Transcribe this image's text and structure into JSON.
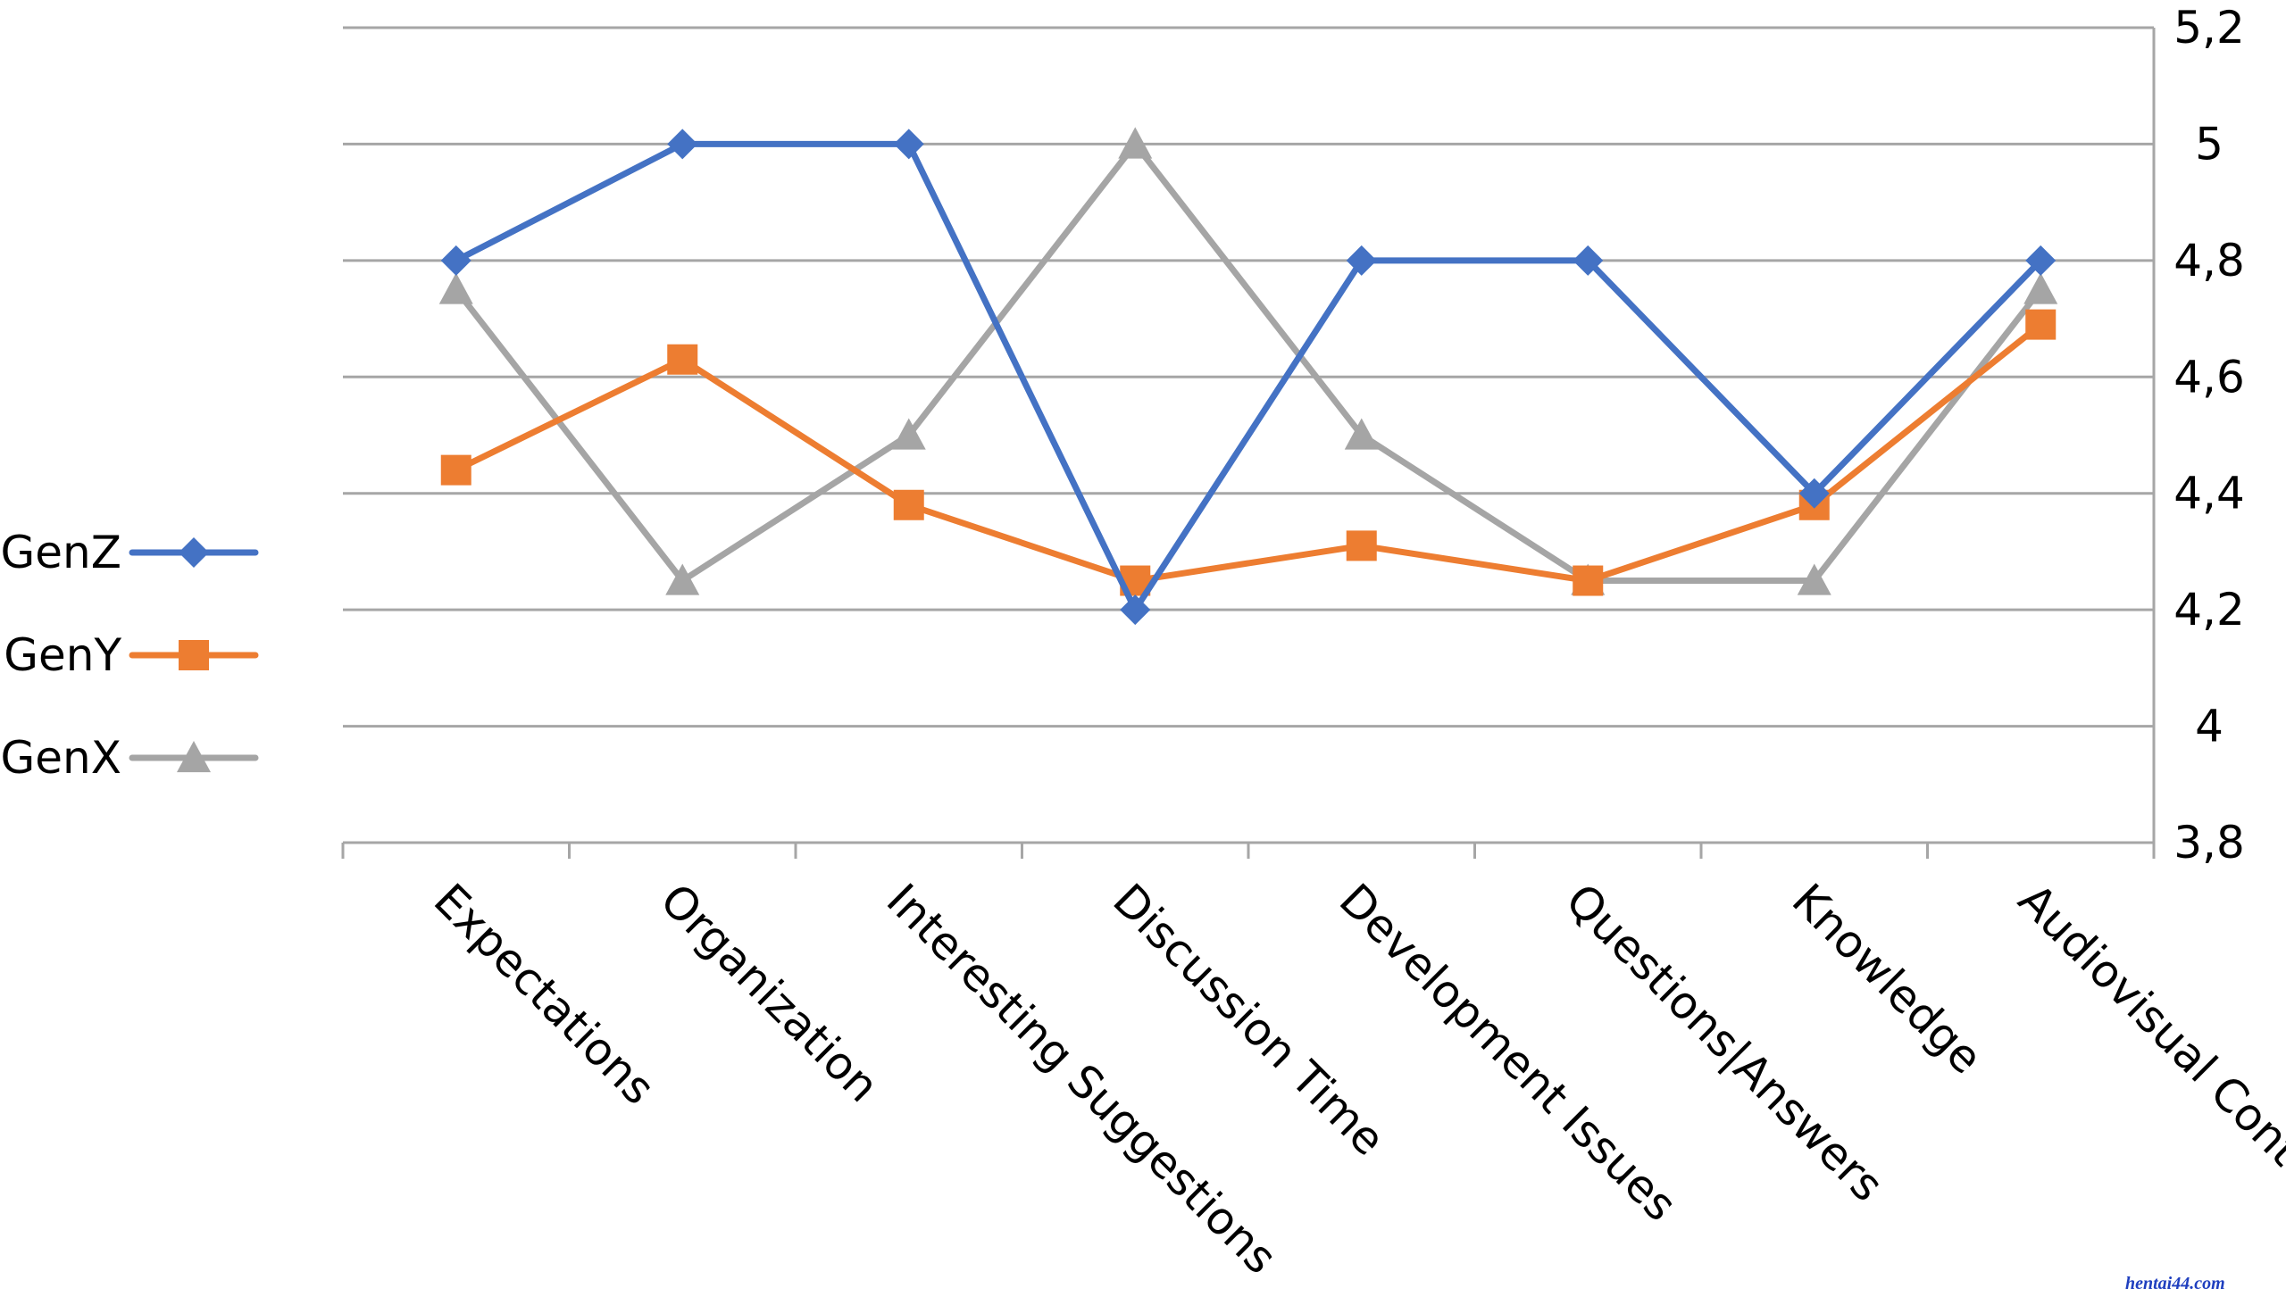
{
  "chart_data": {
    "type": "line",
    "title": "",
    "xlabel": "",
    "ylabel": "",
    "mirrored": true,
    "grid": true,
    "legend_placement": "left",
    "ylim": [
      3.8,
      5.2
    ],
    "yticks": [
      "3,8",
      "4",
      "4,2",
      "4,4",
      "4,6",
      "4,8",
      "5",
      "5,2"
    ],
    "ytick_values": [
      3.8,
      4.0,
      4.2,
      4.4,
      4.6,
      4.8,
      5.0,
      5.2
    ],
    "categories": [
      "Audiovisual Content",
      "Knowledge",
      "Questions|Answers",
      "Development Issues",
      "Discussion Time",
      "Interesting Suggestions",
      "Organization",
      "Expectations"
    ],
    "series": [
      {
        "name": "GenZ",
        "color": "#4472c4",
        "marker": "diamond",
        "values": [
          4.8,
          4.4,
          4.8,
          4.8,
          4.2,
          5.0,
          5.0,
          4.8
        ]
      },
      {
        "name": "GenY",
        "color": "#ed7d31",
        "marker": "square",
        "values": [
          4.69,
          4.38,
          4.25,
          4.31,
          4.25,
          4.38,
          4.63,
          4.44
        ]
      },
      {
        "name": "GenX",
        "color": "#a5a5a5",
        "marker": "triangle",
        "values": [
          4.75,
          4.25,
          4.25,
          4.5,
          5.0,
          4.5,
          4.25,
          4.75
        ]
      }
    ]
  },
  "watermark": "hentai44.com"
}
